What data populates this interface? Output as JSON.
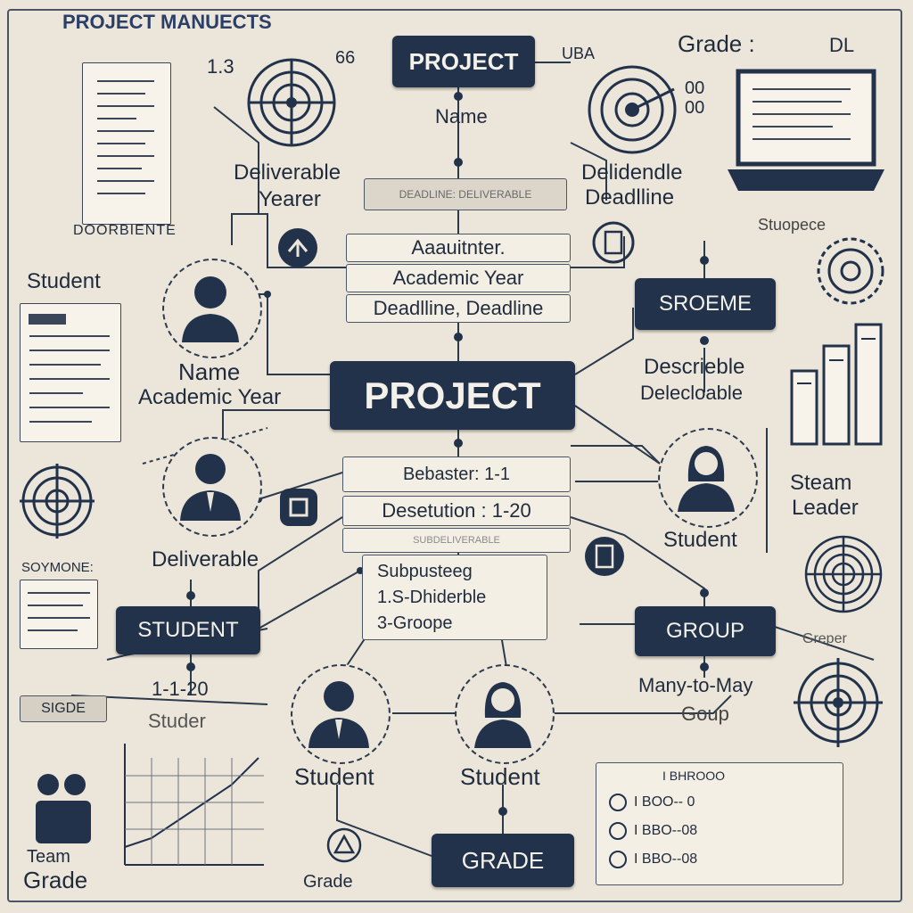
{
  "title": "PROJECT MANUECTS",
  "labels": {
    "num_13": "1.3",
    "num_66": "66",
    "uba": "UBA",
    "grade_top": "Grade :",
    "dl": "DL",
    "oo_top": "00",
    "oo_bottom": "00",
    "name_top": "Name",
    "deliverable_year_1": "Deliverable",
    "deliverable_year_2": "Yearer",
    "delidendle_1": "Delidendle",
    "delidendle_2": "Deadlline",
    "doorbiente": "DOORBIENTE",
    "stuopece": "Stuopece",
    "student_left": "Student",
    "name_left": "Name",
    "academic_year_left": "Academic Year",
    "describle_1": "Descrieble",
    "describle_2": "Delecloable",
    "steam_1": "Steam",
    "steam_2": "Leader",
    "deliverable_mid": "Deliverable",
    "student_right": "Student",
    "sovmone": "SOYMONE:",
    "sigde": "SIGDE",
    "range_left": "1-1-20",
    "studer": "Studer",
    "student_b1": "Student",
    "student_b2": "Student",
    "many_1": "Many-to-May",
    "many_2": "Goup",
    "grepey": "Greper",
    "team_1": "Team",
    "team_2": "Grade",
    "grade_bottom_label": "Grade",
    "list_header": "I BHROOO",
    "list_row_1": "I BOO-- 0",
    "list_row_2": "I BBO--08",
    "list_row_3": "I BBO--08"
  },
  "boxes": {
    "project_top": "PROJECT",
    "project_center": "PROJECT",
    "sroeme": "SROEME",
    "student": "STUDENT",
    "group": "GROUP",
    "grade": "GRADE"
  },
  "fields": {
    "top_bar": "DEADLINE: DELIVERABLE",
    "adm": "Aaauitnter.",
    "academic_year": "Academic Year",
    "deadline": "Deadlline, Deadline",
    "bebaster": "Bebaster: 1-1",
    "desertion": "Desetution : 1-20",
    "blank_field": "SUBDELIVERABLE",
    "sub_1": "Subpusteeg",
    "sub_2": "1.S-Dhiderble",
    "sub_3": "3-Groope"
  },
  "colors": {
    "box_fill": "#22324a",
    "box_text": "#f3f1ea",
    "line": "#2c3a4d",
    "paper": "#ece6da"
  }
}
